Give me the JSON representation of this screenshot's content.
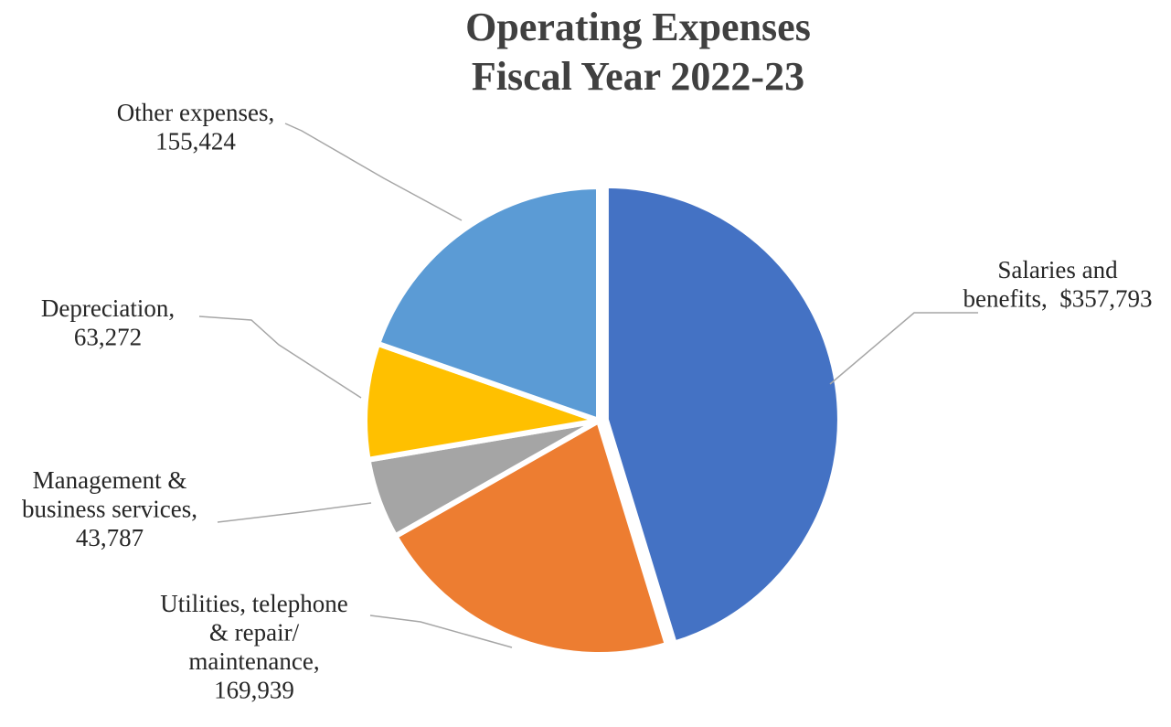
{
  "chart_data": {
    "type": "pie",
    "title": [
      "Operating Expenses",
      "Fiscal Year 2022-23"
    ],
    "start_angle_deg": 0,
    "direction": "clockwise",
    "legend": "none",
    "slices": [
      {
        "name": "Salaries and benefits",
        "value": 357793,
        "color": "#4472C4",
        "label_lines": [
          "Salaries and",
          "benefits,  $357,793"
        ]
      },
      {
        "name": "Utilities, telephone & repair/ maintenance",
        "value": 169939,
        "color": "#ED7D31",
        "label_lines": [
          "Utilities, telephone",
          "& repair/",
          "maintenance,",
          "169,939"
        ]
      },
      {
        "name": "Management & business services",
        "value": 43787,
        "color": "#A5A5A5",
        "label_lines": [
          "Management &",
          "business services,",
          "43,787"
        ]
      },
      {
        "name": "Depreciation",
        "value": 63272,
        "color": "#FFC000",
        "label_lines": [
          "Depreciation,",
          "63,272"
        ]
      },
      {
        "name": "Other expenses",
        "value": 155424,
        "color": "#5B9BD5",
        "label_lines": [
          "Other expenses,",
          "155,424"
        ]
      }
    ]
  }
}
